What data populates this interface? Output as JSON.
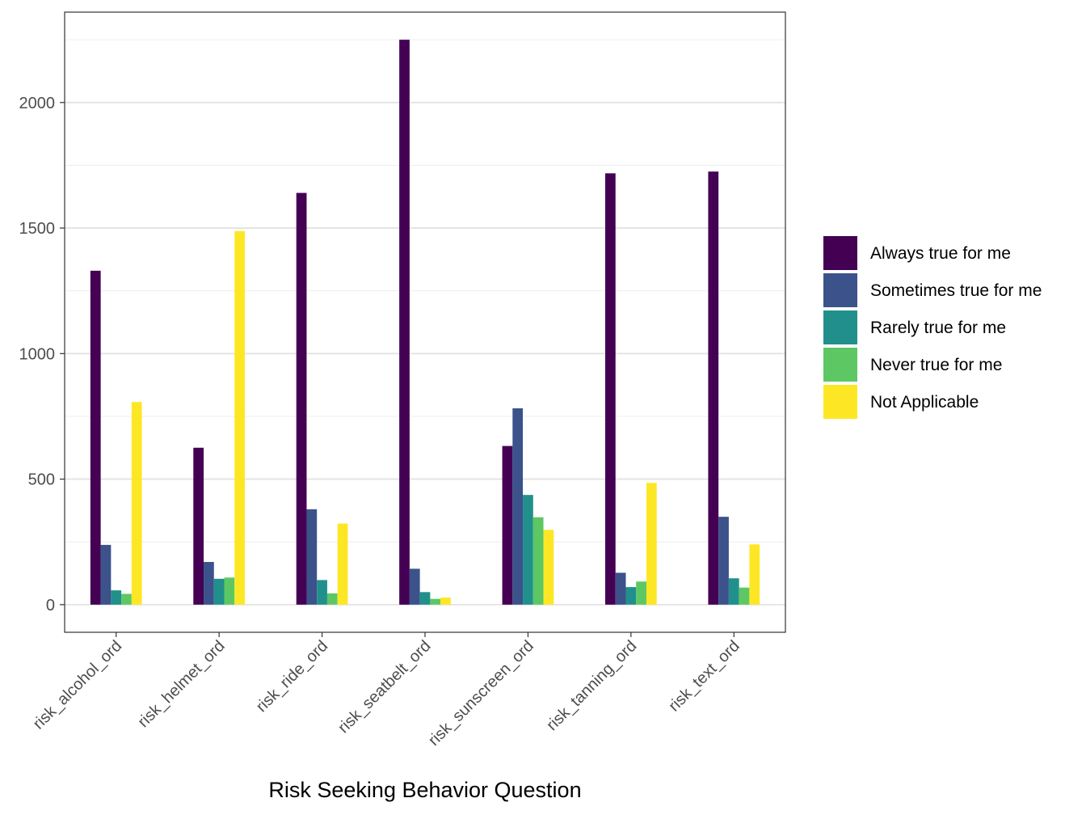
{
  "chart_data": {
    "type": "bar",
    "xlabel": "Risk Seeking Behavior Question",
    "ylabel": "",
    "ylim": [
      -110,
      2360
    ],
    "yticks": [
      0,
      500,
      1000,
      1500,
      2000
    ],
    "ytick_labels": [
      "0",
      "500",
      "1000",
      "1500",
      "2000"
    ],
    "grid": true,
    "legend_position": "right",
    "categories": [
      "risk_alcohol_ord",
      "risk_helmet_ord",
      "risk_ride_ord",
      "risk_seatbelt_ord",
      "risk_sunscreen_ord",
      "risk_tanning_ord",
      "risk_text_ord"
    ],
    "series": [
      {
        "name": "Always true for me",
        "color": "#440154",
        "values": [
          1330,
          625,
          1640,
          2250,
          632,
          1718,
          1725
        ]
      },
      {
        "name": "Sometimes true for me",
        "color": "#3B528B",
        "values": [
          238,
          170,
          380,
          143,
          782,
          127,
          350
        ]
      },
      {
        "name": "Rarely true for me",
        "color": "#21908C",
        "values": [
          57,
          103,
          98,
          50,
          437,
          70,
          105
        ]
      },
      {
        "name": "Never true for me",
        "color": "#5DC863",
        "values": [
          43,
          108,
          45,
          23,
          348,
          92,
          68
        ]
      },
      {
        "name": "Not Applicable",
        "color": "#FDE725",
        "values": [
          807,
          1488,
          323,
          28,
          298,
          485,
          240
        ]
      }
    ]
  }
}
